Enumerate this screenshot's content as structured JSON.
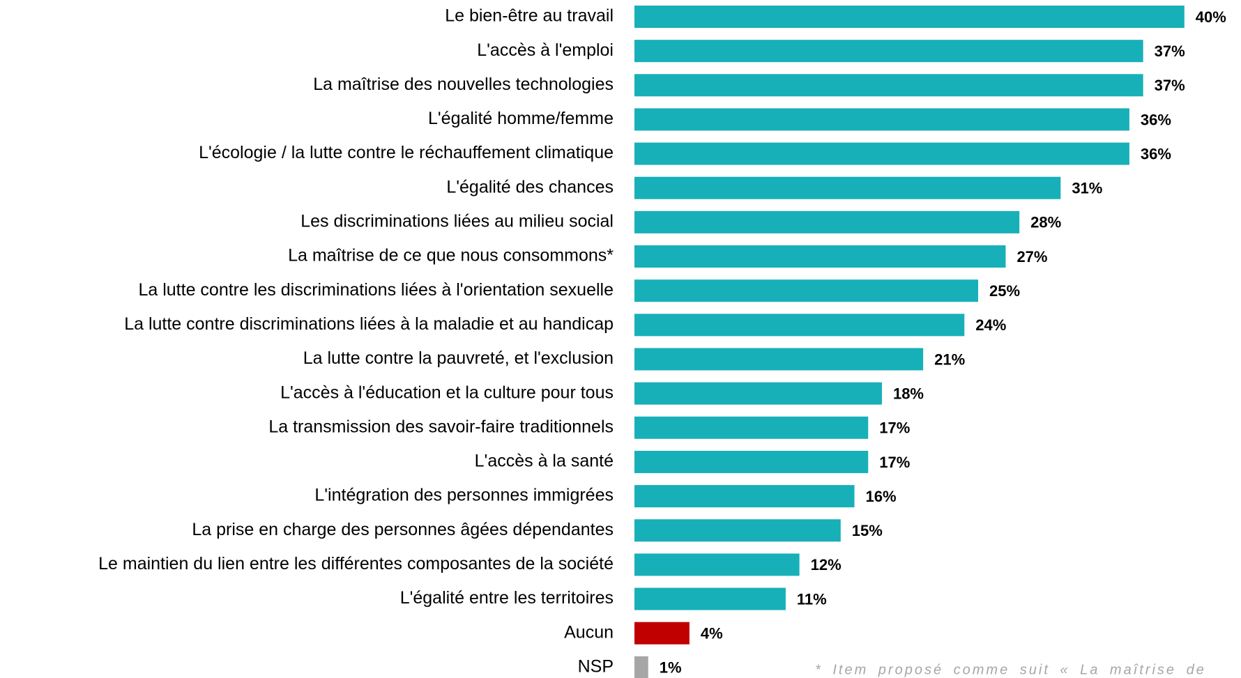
{
  "chart_data": {
    "type": "bar",
    "orientation": "horizontal",
    "categories": [
      "Le bien-être au travail",
      "L'accès à l'emploi",
      "La maîtrise des nouvelles technologies",
      "L'égalité homme/femme",
      "L'écologie / la lutte contre le réchauffement climatique",
      "L'égalité des chances",
      "Les discriminations liées au milieu social",
      "La maîtrise de ce que nous consommons*",
      "La lutte contre les discriminations liées à l'orientation sexuelle",
      "La lutte contre discriminations liées à la maladie et au handicap",
      "La lutte contre la pauvreté, et l'exclusion",
      "L'accès à l'éducation et la culture pour tous",
      "La transmission des savoir-faire traditionnels",
      "L'accès à la santé",
      "L'intégration des personnes immigrées",
      "La prise en charge des personnes âgées dépendantes",
      "Le maintien du lien entre les différentes composantes de la société",
      "L'égalité entre les territoires",
      "Aucun",
      "NSP"
    ],
    "values": [
      40,
      37,
      37,
      36,
      36,
      31,
      28,
      27,
      25,
      24,
      21,
      18,
      17,
      17,
      16,
      15,
      12,
      11,
      4,
      1
    ],
    "value_labels": [
      "40%",
      "37%",
      "37%",
      "36%",
      "36%",
      "31%",
      "28%",
      "27%",
      "25%",
      "24%",
      "21%",
      "18%",
      "17%",
      "17%",
      "16%",
      "15%",
      "12%",
      "11%",
      "4%",
      "1%"
    ],
    "colors": [
      "#17b0b8",
      "#17b0b8",
      "#17b0b8",
      "#17b0b8",
      "#17b0b8",
      "#17b0b8",
      "#17b0b8",
      "#17b0b8",
      "#17b0b8",
      "#17b0b8",
      "#17b0b8",
      "#17b0b8",
      "#17b0b8",
      "#17b0b8",
      "#17b0b8",
      "#17b0b8",
      "#17b0b8",
      "#17b0b8",
      "#c00000",
      "#a6a6a6"
    ],
    "note": "* Item proposé comme suit « La maîtrise de"
  }
}
